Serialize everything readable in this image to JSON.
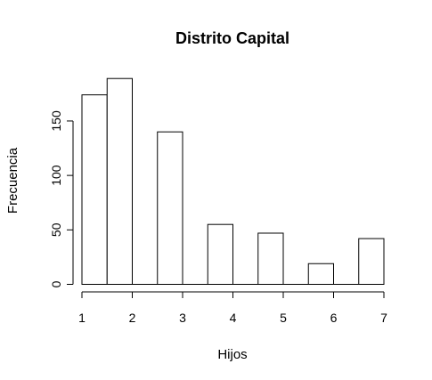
{
  "chart_data": {
    "type": "bar",
    "title": "Distrito Capital",
    "xlabel": "Hijos",
    "ylabel": "Frecuencia",
    "bins": [
      {
        "x0": 1.0,
        "x1": 1.5,
        "value": 174
      },
      {
        "x0": 1.5,
        "x1": 2.0,
        "value": 189
      },
      {
        "x0": 2.0,
        "x1": 2.5,
        "value": 0
      },
      {
        "x0": 2.5,
        "x1": 3.0,
        "value": 140
      },
      {
        "x0": 3.0,
        "x1": 3.5,
        "value": 0
      },
      {
        "x0": 3.5,
        "x1": 4.0,
        "value": 55
      },
      {
        "x0": 4.0,
        "x1": 4.5,
        "value": 0
      },
      {
        "x0": 4.5,
        "x1": 5.0,
        "value": 47
      },
      {
        "x0": 5.0,
        "x1": 5.5,
        "value": 0
      },
      {
        "x0": 5.5,
        "x1": 6.0,
        "value": 19
      },
      {
        "x0": 6.0,
        "x1": 6.5,
        "value": 0
      },
      {
        "x0": 6.5,
        "x1": 7.0,
        "value": 42
      }
    ],
    "xlim": [
      1,
      7
    ],
    "ylim": [
      0,
      190
    ],
    "x_ticks": [
      "1",
      "2",
      "3",
      "4",
      "5",
      "6",
      "7"
    ],
    "y_ticks": [
      "0",
      "50",
      "100",
      "150"
    ],
    "grid": false,
    "bar_fill": "#ffffff",
    "bar_stroke": "#000000"
  }
}
